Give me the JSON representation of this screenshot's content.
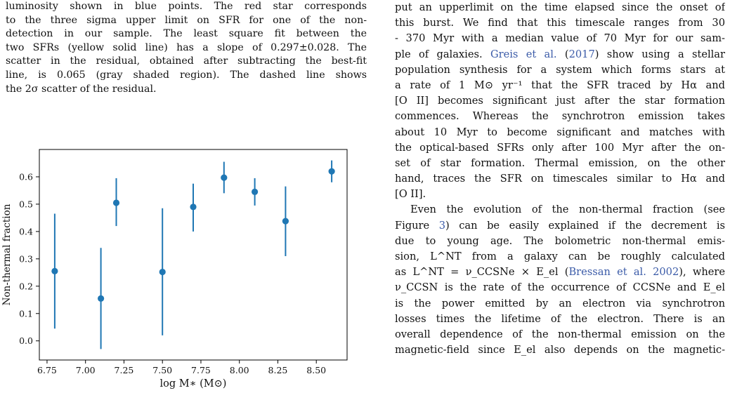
{
  "caption": {
    "lines": [
      "luminosity shown in blue points. The red star corresponds",
      "to the three sigma upper limit on SFR for one of the non-",
      "detection in our sample. The least square fit between the",
      "two SFRs (yellow solid line) has a slope of 0.297±0.028. The",
      "scatter in the residual, obtained after subtracting the best-fit",
      "line, is 0.065 (gray shaded region). The dashed line shows",
      "the 2σ scatter of the residual."
    ]
  },
  "body_text": {
    "lines_top": [
      "put an upperlimit on the time elapsed since the onset of",
      "this burst. We find that this timescale ranges from 30",
      "- 370 Myr with a median value of 70 Myr for our sam-"
    ],
    "line4_cite": "Greis et al.",
    "line4_year": "2017",
    "line4_rest": " show using a stellar",
    "lines_mid": [
      "population synthesis for a system which forms stars at",
      "a rate of 1 M⊙ yr⁻¹ that the SFR traced by Hα and",
      "[O II] becomes significant just after the star formation",
      "commences. Whereas the synchrotron emission takes",
      "about 10 Myr to become significant and matches with",
      "the optical-based SFRs only after 100 Myr after the on-",
      "set of star formation. Thermal emission, on the other",
      "hand, traces the SFR on timescales similar to Hα and",
      "[O II]."
    ],
    "p2_line1": "Even the evolution of the non-thermal fraction (see",
    "p2_line2_pre": "Figure ",
    "p2_fig_ref": "3",
    "p2_line2_post": ") can be easily explained if the decrement is",
    "p2_line3": "due to young age. The bolometric non-thermal emis-",
    "p2_line4": "sion, L^NT from a galaxy can be roughly calculated",
    "p2_line5_pre": "as L^NT = ν_CCSNe × E_el (",
    "p2_line5_cite": "Bressan et al. 2002",
    "p2_line5_post": "), where",
    "p2_line6": "ν_CCSN is the rate of the occurrence of CCSNe and E_el",
    "p2_line7": "is the power emitted by an electron via synchrotron",
    "p2_line8": "losses times the lifetime of the electron. There is an",
    "p2_line9": "overall dependence of the non-thermal emission on the",
    "p2_line10": "magnetic-field since E_el also depends on the magnetic-"
  },
  "chart_data": {
    "type": "scatter",
    "title": "",
    "xlabel": "log M∗ (M⊙)",
    "ylabel": "Non-thermal fraction",
    "xlim": [
      6.7,
      8.7
    ],
    "ylim": [
      -0.07,
      0.7
    ],
    "xticks": [
      "6.75",
      "7.00",
      "7.25",
      "7.50",
      "7.75",
      "8.00",
      "8.25",
      "8.50"
    ],
    "xtick_values": [
      6.75,
      7.0,
      7.25,
      7.5,
      7.75,
      8.0,
      8.25,
      8.5
    ],
    "yticks": [
      "0.0",
      "0.1",
      "0.2",
      "0.3",
      "0.4",
      "0.5",
      "0.6"
    ],
    "ytick_values": [
      0.0,
      0.1,
      0.2,
      0.3,
      0.4,
      0.5,
      0.6
    ],
    "grid": false,
    "marker_color": "#1f77b4",
    "points": [
      {
        "x": 6.8,
        "y": 0.255,
        "ylow": 0.045,
        "yhigh": 0.465
      },
      {
        "x": 7.1,
        "y": 0.155,
        "ylow": -0.03,
        "yhigh": 0.34
      },
      {
        "x": 7.2,
        "y": 0.505,
        "ylow": 0.42,
        "yhigh": 0.595
      },
      {
        "x": 7.5,
        "y": 0.252,
        "ylow": 0.02,
        "yhigh": 0.485
      },
      {
        "x": 7.7,
        "y": 0.49,
        "ylow": 0.4,
        "yhigh": 0.575
      },
      {
        "x": 7.9,
        "y": 0.597,
        "ylow": 0.54,
        "yhigh": 0.655
      },
      {
        "x": 8.1,
        "y": 0.545,
        "ylow": 0.495,
        "yhigh": 0.595
      },
      {
        "x": 8.3,
        "y": 0.438,
        "ylow": 0.31,
        "yhigh": 0.565
      },
      {
        "x": 8.6,
        "y": 0.62,
        "ylow": 0.58,
        "yhigh": 0.66
      }
    ]
  }
}
